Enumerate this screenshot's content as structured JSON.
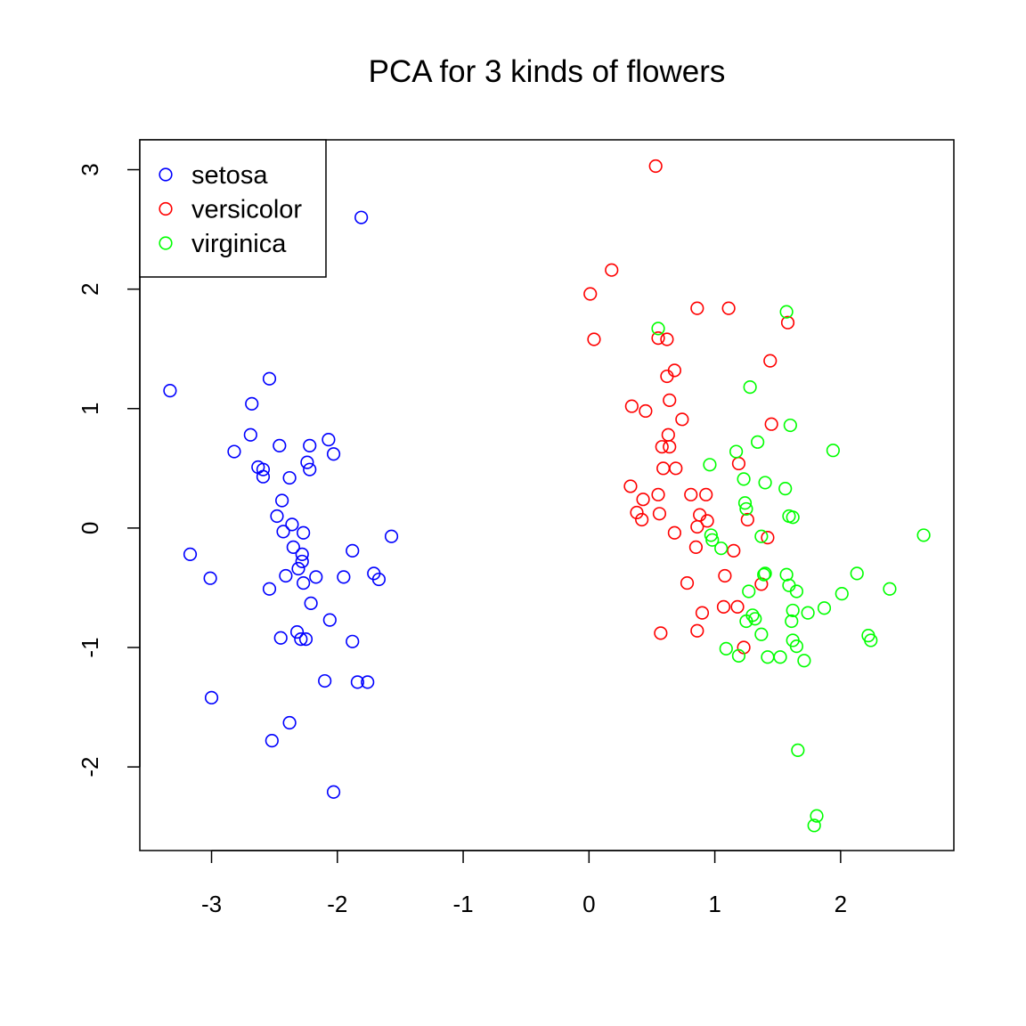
{
  "chart_data": {
    "type": "scatter",
    "title": "PCA for 3 kinds of flowers",
    "xlabel": "",
    "ylabel": "",
    "xlim": [
      -3.57,
      2.9
    ],
    "ylim": [
      -2.7,
      3.25
    ],
    "xticks": [
      -3,
      -2,
      -1,
      0,
      1,
      2
    ],
    "yticks": [
      -2,
      -1,
      0,
      1,
      2,
      3
    ],
    "grid": false,
    "legend_position": "top-left",
    "marker": "open-circle",
    "series": [
      {
        "name": "setosa",
        "color": "#0000FF",
        "points": [
          [
            -1.81,
            2.6
          ],
          [
            -3.33,
            1.15
          ],
          [
            -2.54,
            1.25
          ],
          [
            -2.68,
            1.04
          ],
          [
            -2.69,
            0.78
          ],
          [
            -2.82,
            0.64
          ],
          [
            -2.46,
            0.69
          ],
          [
            -2.22,
            0.69
          ],
          [
            -2.07,
            0.74
          ],
          [
            -2.03,
            0.62
          ],
          [
            -2.24,
            0.55
          ],
          [
            -2.22,
            0.49
          ],
          [
            -2.63,
            0.51
          ],
          [
            -2.59,
            0.49
          ],
          [
            -2.59,
            0.43
          ],
          [
            -2.38,
            0.42
          ],
          [
            -2.44,
            0.23
          ],
          [
            -2.48,
            0.1
          ],
          [
            -2.36,
            0.03
          ],
          [
            -2.43,
            -0.03
          ],
          [
            -2.27,
            -0.04
          ],
          [
            -1.57,
            -0.07
          ],
          [
            -2.35,
            -0.16
          ],
          [
            -1.88,
            -0.19
          ],
          [
            -2.28,
            -0.22
          ],
          [
            -2.28,
            -0.28
          ],
          [
            -3.17,
            -0.22
          ],
          [
            -2.31,
            -0.34
          ],
          [
            -2.41,
            -0.4
          ],
          [
            -2.17,
            -0.41
          ],
          [
            -1.95,
            -0.41
          ],
          [
            -1.71,
            -0.38
          ],
          [
            -1.67,
            -0.43
          ],
          [
            -3.01,
            -0.42
          ],
          [
            -2.27,
            -0.46
          ],
          [
            -2.54,
            -0.51
          ],
          [
            -2.21,
            -0.63
          ],
          [
            -2.06,
            -0.77
          ],
          [
            -2.32,
            -0.87
          ],
          [
            -2.45,
            -0.92
          ],
          [
            -2.29,
            -0.93
          ],
          [
            -2.25,
            -0.93
          ],
          [
            -1.88,
            -0.95
          ],
          [
            -2.1,
            -1.28
          ],
          [
            -1.84,
            -1.29
          ],
          [
            -1.76,
            -1.29
          ],
          [
            -3.0,
            -1.42
          ],
          [
            -2.38,
            -1.63
          ],
          [
            -2.52,
            -1.78
          ],
          [
            -2.03,
            -2.21
          ]
        ]
      },
      {
        "name": "versicolor",
        "color": "#FF0000",
        "points": [
          [
            0.53,
            3.03
          ],
          [
            0.18,
            2.16
          ],
          [
            0.01,
            1.96
          ],
          [
            0.04,
            1.58
          ],
          [
            0.86,
            1.84
          ],
          [
            1.11,
            1.84
          ],
          [
            0.55,
            1.59
          ],
          [
            0.62,
            1.58
          ],
          [
            1.58,
            1.72
          ],
          [
            1.44,
            1.4
          ],
          [
            0.68,
            1.32
          ],
          [
            0.62,
            1.27
          ],
          [
            0.64,
            1.07
          ],
          [
            0.34,
            1.02
          ],
          [
            0.45,
            0.98
          ],
          [
            0.74,
            0.91
          ],
          [
            1.45,
            0.87
          ],
          [
            0.63,
            0.78
          ],
          [
            0.58,
            0.68
          ],
          [
            0.64,
            0.68
          ],
          [
            1.19,
            0.54
          ],
          [
            0.59,
            0.5
          ],
          [
            0.69,
            0.5
          ],
          [
            0.33,
            0.35
          ],
          [
            0.55,
            0.28
          ],
          [
            0.81,
            0.28
          ],
          [
            0.93,
            0.28
          ],
          [
            0.43,
            0.24
          ],
          [
            0.38,
            0.13
          ],
          [
            0.56,
            0.12
          ],
          [
            0.42,
            0.07
          ],
          [
            0.88,
            0.11
          ],
          [
            0.94,
            0.06
          ],
          [
            1.26,
            0.07
          ],
          [
            0.86,
            0.01
          ],
          [
            0.68,
            -0.04
          ],
          [
            1.42,
            -0.08
          ],
          [
            0.85,
            -0.16
          ],
          [
            1.15,
            -0.19
          ],
          [
            1.08,
            -0.4
          ],
          [
            0.78,
            -0.46
          ],
          [
            1.37,
            -0.47
          ],
          [
            1.07,
            -0.66
          ],
          [
            1.18,
            -0.66
          ],
          [
            0.9,
            -0.71
          ],
          [
            0.86,
            -0.86
          ],
          [
            0.57,
            -0.88
          ],
          [
            1.23,
            -1.0
          ]
        ]
      },
      {
        "name": "virginica",
        "color": "#00FF00",
        "points": [
          [
            1.57,
            1.81
          ],
          [
            0.55,
            1.67
          ],
          [
            1.28,
            1.18
          ],
          [
            1.6,
            0.86
          ],
          [
            1.94,
            0.65
          ],
          [
            1.34,
            0.72
          ],
          [
            1.17,
            0.64
          ],
          [
            0.96,
            0.53
          ],
          [
            1.23,
            0.41
          ],
          [
            1.4,
            0.38
          ],
          [
            1.56,
            0.33
          ],
          [
            1.24,
            0.21
          ],
          [
            1.25,
            0.16
          ],
          [
            1.59,
            0.1
          ],
          [
            1.62,
            0.09
          ],
          [
            2.66,
            -0.06
          ],
          [
            1.37,
            -0.07
          ],
          [
            0.97,
            -0.06
          ],
          [
            0.98,
            -0.1
          ],
          [
            1.05,
            -0.17
          ],
          [
            1.4,
            -0.38
          ],
          [
            1.39,
            -0.39
          ],
          [
            1.57,
            -0.39
          ],
          [
            2.13,
            -0.38
          ],
          [
            1.59,
            -0.48
          ],
          [
            1.65,
            -0.53
          ],
          [
            1.27,
            -0.53
          ],
          [
            2.01,
            -0.55
          ],
          [
            2.39,
            -0.51
          ],
          [
            1.62,
            -0.69
          ],
          [
            1.74,
            -0.71
          ],
          [
            1.87,
            -0.67
          ],
          [
            1.3,
            -0.73
          ],
          [
            1.32,
            -0.76
          ],
          [
            1.25,
            -0.78
          ],
          [
            1.61,
            -0.78
          ],
          [
            1.37,
            -0.89
          ],
          [
            2.22,
            -0.9
          ],
          [
            2.24,
            -0.94
          ],
          [
            1.62,
            -0.94
          ],
          [
            1.65,
            -0.99
          ],
          [
            1.09,
            -1.01
          ],
          [
            1.19,
            -1.07
          ],
          [
            1.42,
            -1.08
          ],
          [
            1.52,
            -1.08
          ],
          [
            1.71,
            -1.11
          ],
          [
            1.66,
            -1.86
          ],
          [
            1.81,
            -2.41
          ],
          [
            1.79,
            -2.49
          ]
        ]
      }
    ]
  }
}
